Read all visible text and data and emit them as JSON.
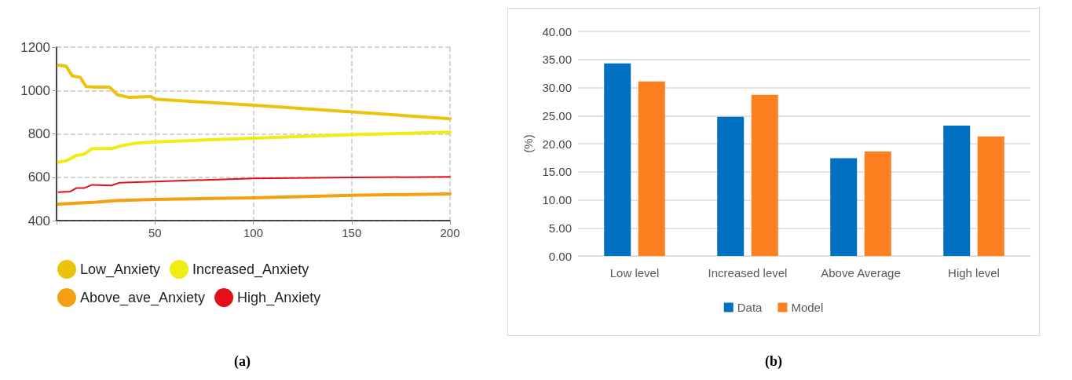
{
  "chart_data": [
    {
      "type": "line",
      "title": "(a)",
      "xlim": [
        0,
        200
      ],
      "xticks": [
        {
          "value": 0,
          "label": null
        },
        50,
        100,
        150,
        200
      ],
      "ylim": [
        400,
        1200
      ],
      "yticks": [
        400,
        600,
        800,
        1000,
        1200
      ],
      "grid": true,
      "legend": "bottom",
      "marker": "none",
      "line_style": "solid",
      "series": [
        {
          "name": "Low_Anxiety",
          "color": "#ecc30c",
          "x": [
            1,
            5,
            8,
            12,
            15,
            20,
            27,
            31,
            37,
            48,
            50,
            100,
            150,
            200
          ],
          "values": [
            1117,
            1111,
            1067,
            1061,
            1018,
            1015,
            1015,
            980,
            968,
            972,
            960,
            932,
            901,
            870
          ]
        },
        {
          "name": "Increased_Anxiety",
          "color": "#f0ec14",
          "x": [
            1,
            5,
            10,
            14,
            18,
            28,
            33,
            40,
            50,
            100,
            150,
            200
          ],
          "values": [
            670,
            676,
            700,
            706,
            732,
            732,
            745,
            757,
            763,
            780,
            796,
            808
          ]
        },
        {
          "name": "Above_ave_Anxiety",
          "color": "#f4a012",
          "x": [
            1,
            20,
            30,
            50,
            100,
            150,
            200
          ],
          "values": [
            476,
            485,
            492,
            498,
            505,
            517,
            523
          ]
        },
        {
          "name": "High_Anxiety",
          "color": "#e3101c",
          "x": [
            1,
            7,
            10,
            14,
            18,
            28,
            32,
            50,
            100,
            150,
            200
          ],
          "values": [
            531,
            534,
            550,
            550,
            565,
            562,
            575,
            580,
            595,
            599,
            602
          ]
        }
      ]
    },
    {
      "type": "bar",
      "title": "(b)",
      "ylabel": "(%)",
      "categories": [
        "Low level",
        "Increased level",
        "Above Average",
        "High level"
      ],
      "ylim": [
        0,
        40
      ],
      "yticks": [
        {
          "value": 0,
          "label": "0.00"
        },
        {
          "value": 5,
          "label": "5.00"
        },
        {
          "value": 10,
          "label": "10.00"
        },
        {
          "value": 15,
          "label": "15.00"
        },
        {
          "value": 20,
          "label": "20.00"
        },
        {
          "value": 25,
          "label": "25.00"
        },
        {
          "value": 30,
          "label": "30.00"
        },
        {
          "value": 35,
          "label": "35.00"
        },
        {
          "value": 40,
          "label": "40.00"
        }
      ],
      "grid": "y",
      "legend": "bottom",
      "series": [
        {
          "name": "Data",
          "color": "#0070c0",
          "values": [
            34.3,
            24.8,
            17.4,
            23.2
          ]
        },
        {
          "name": "Model",
          "color": "#fe7f1f",
          "values": [
            31.1,
            28.7,
            18.6,
            21.3
          ]
        }
      ]
    }
  ]
}
